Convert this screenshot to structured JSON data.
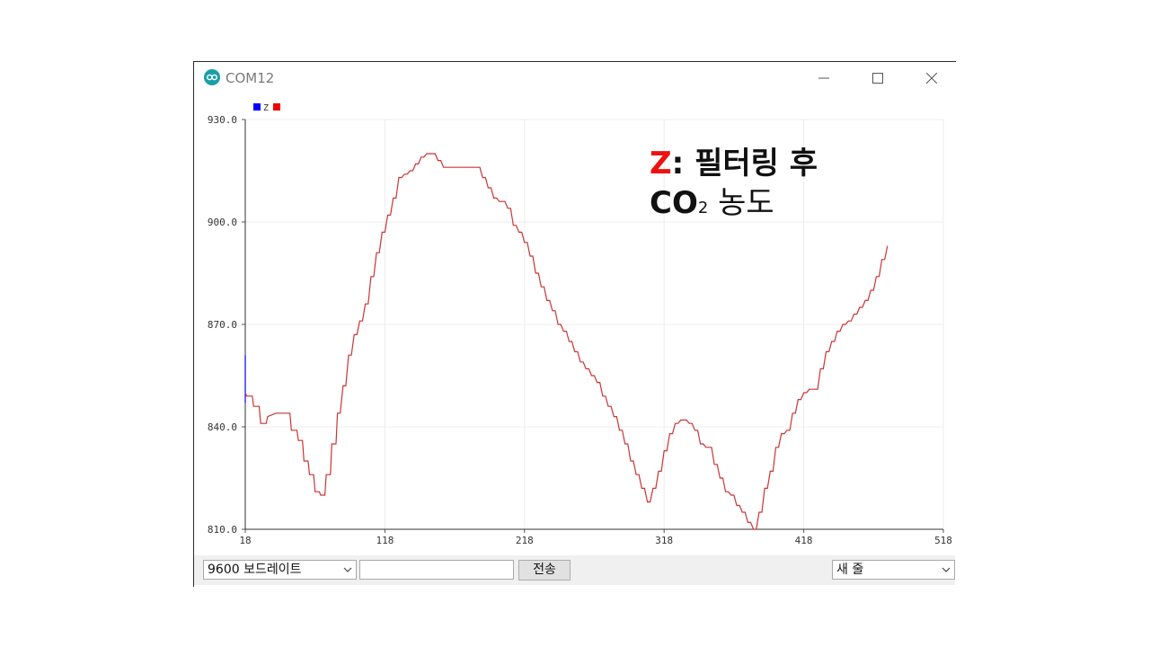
{
  "window": {
    "title": "COM12"
  },
  "controls": {
    "minimize_icon": "minimize-icon",
    "maximize_icon": "maximize-icon",
    "close_icon": "close-icon"
  },
  "chart_data": {
    "type": "line",
    "title": "",
    "xlabel": "",
    "ylabel": "",
    "legend": {
      "entries": [
        "Z"
      ],
      "placement": "top-left",
      "swatch_colors": [
        "#0000ff",
        "#ee0000"
      ]
    },
    "grid": true,
    "xlim": [
      18,
      518
    ],
    "ylim": [
      810,
      930
    ],
    "x_ticks": [
      "18",
      "118",
      "218",
      "318",
      "418",
      "518"
    ],
    "y_ticks": [
      "930.0",
      "900.0",
      "870.0",
      "840.0",
      "810.0"
    ],
    "series": [
      {
        "name": "",
        "color": "#0000ff",
        "points": [
          [
            18,
            861
          ],
          [
            18,
            847
          ]
        ]
      },
      {
        "name": "Z",
        "color": "#cc3333",
        "points": [
          [
            18,
            850
          ],
          [
            19,
            849
          ],
          [
            23,
            849
          ],
          [
            24,
            846
          ],
          [
            28,
            846
          ],
          [
            29,
            841
          ],
          [
            33,
            841
          ],
          [
            34,
            843
          ],
          [
            40,
            844
          ],
          [
            50,
            844
          ],
          [
            51,
            839
          ],
          [
            55,
            839
          ],
          [
            56,
            836
          ],
          [
            59,
            836
          ],
          [
            60,
            830
          ],
          [
            63,
            830
          ],
          [
            64,
            826
          ],
          [
            67,
            826
          ],
          [
            68,
            821
          ],
          [
            71,
            821
          ],
          [
            72,
            820
          ],
          [
            75,
            820
          ],
          [
            76,
            826
          ],
          [
            79,
            826
          ],
          [
            80,
            835
          ],
          [
            83,
            835
          ],
          [
            84,
            844
          ],
          [
            86,
            844
          ],
          [
            88,
            852
          ],
          [
            90,
            852
          ],
          [
            92,
            861
          ],
          [
            94,
            861
          ],
          [
            96,
            867
          ],
          [
            98,
            867
          ],
          [
            100,
            871
          ],
          [
            102,
            871
          ],
          [
            104,
            876
          ],
          [
            106,
            876
          ],
          [
            108,
            884
          ],
          [
            110,
            884
          ],
          [
            112,
            891
          ],
          [
            114,
            891
          ],
          [
            116,
            897
          ],
          [
            118,
            897
          ],
          [
            120,
            902
          ],
          [
            122,
            902
          ],
          [
            124,
            907
          ],
          [
            126,
            907
          ],
          [
            128,
            913
          ],
          [
            130,
            913
          ],
          [
            132,
            914
          ],
          [
            134,
            914
          ],
          [
            136,
            915
          ],
          [
            138,
            915
          ],
          [
            140,
            917
          ],
          [
            142,
            917
          ],
          [
            144,
            919
          ],
          [
            146,
            919
          ],
          [
            148,
            920
          ],
          [
            154,
            920
          ],
          [
            156,
            918
          ],
          [
            158,
            918
          ],
          [
            160,
            916
          ],
          [
            186,
            916
          ],
          [
            188,
            913
          ],
          [
            190,
            913
          ],
          [
            192,
            910
          ],
          [
            194,
            910
          ],
          [
            196,
            907
          ],
          [
            198,
            907
          ],
          [
            200,
            906
          ],
          [
            204,
            906
          ],
          [
            206,
            904
          ],
          [
            208,
            904
          ],
          [
            210,
            899
          ],
          [
            212,
            899
          ],
          [
            214,
            897
          ],
          [
            216,
            897
          ],
          [
            218,
            894
          ],
          [
            220,
            894
          ],
          [
            222,
            890
          ],
          [
            224,
            890
          ],
          [
            226,
            885
          ],
          [
            228,
            885
          ],
          [
            230,
            881
          ],
          [
            232,
            881
          ],
          [
            234,
            877
          ],
          [
            236,
            877
          ],
          [
            238,
            874
          ],
          [
            240,
            874
          ],
          [
            242,
            870
          ],
          [
            244,
            870
          ],
          [
            246,
            868
          ],
          [
            248,
            868
          ],
          [
            250,
            865
          ],
          [
            252,
            865
          ],
          [
            254,
            862
          ],
          [
            256,
            862
          ],
          [
            258,
            859
          ],
          [
            260,
            859
          ],
          [
            262,
            857
          ],
          [
            264,
            857
          ],
          [
            266,
            855
          ],
          [
            268,
            855
          ],
          [
            270,
            853
          ],
          [
            272,
            853
          ],
          [
            274,
            849
          ],
          [
            276,
            849
          ],
          [
            278,
            846
          ],
          [
            280,
            846
          ],
          [
            282,
            843
          ],
          [
            284,
            843
          ],
          [
            286,
            839
          ],
          [
            288,
            839
          ],
          [
            290,
            835
          ],
          [
            292,
            835
          ],
          [
            294,
            830
          ],
          [
            296,
            830
          ],
          [
            298,
            826
          ],
          [
            300,
            826
          ],
          [
            302,
            822
          ],
          [
            304,
            822
          ],
          [
            306,
            818
          ],
          [
            308,
            818
          ],
          [
            310,
            822
          ],
          [
            312,
            822
          ],
          [
            314,
            827
          ],
          [
            316,
            827
          ],
          [
            318,
            833
          ],
          [
            320,
            833
          ],
          [
            322,
            838
          ],
          [
            324,
            838
          ],
          [
            326,
            841
          ],
          [
            328,
            841
          ],
          [
            330,
            842
          ],
          [
            334,
            842
          ],
          [
            336,
            841
          ],
          [
            338,
            841
          ],
          [
            340,
            839
          ],
          [
            342,
            839
          ],
          [
            344,
            835
          ],
          [
            346,
            835
          ],
          [
            348,
            834
          ],
          [
            352,
            834
          ],
          [
            354,
            829
          ],
          [
            356,
            829
          ],
          [
            358,
            825
          ],
          [
            360,
            825
          ],
          [
            362,
            821
          ],
          [
            364,
            821
          ],
          [
            366,
            820
          ],
          [
            368,
            820
          ],
          [
            370,
            817
          ],
          [
            372,
            817
          ],
          [
            374,
            815
          ],
          [
            376,
            815
          ],
          [
            378,
            812
          ],
          [
            380,
            812
          ],
          [
            382,
            810
          ],
          [
            384,
            810
          ],
          [
            386,
            815
          ],
          [
            388,
            815
          ],
          [
            390,
            822
          ],
          [
            392,
            822
          ],
          [
            394,
            827
          ],
          [
            396,
            827
          ],
          [
            398,
            834
          ],
          [
            400,
            834
          ],
          [
            402,
            838
          ],
          [
            404,
            838
          ],
          [
            406,
            839
          ],
          [
            408,
            839
          ],
          [
            410,
            844
          ],
          [
            412,
            844
          ],
          [
            414,
            848
          ],
          [
            416,
            848
          ],
          [
            418,
            850
          ],
          [
            420,
            850
          ],
          [
            422,
            851
          ],
          [
            424,
            851
          ],
          [
            426,
            851
          ],
          [
            428,
            851
          ],
          [
            430,
            857
          ],
          [
            432,
            857
          ],
          [
            434,
            862
          ],
          [
            436,
            862
          ],
          [
            438,
            865
          ],
          [
            440,
            865
          ],
          [
            442,
            868
          ],
          [
            444,
            868
          ],
          [
            446,
            870
          ],
          [
            448,
            870
          ],
          [
            450,
            871
          ],
          [
            452,
            871
          ],
          [
            454,
            873
          ],
          [
            456,
            873
          ],
          [
            458,
            875
          ],
          [
            460,
            875
          ],
          [
            462,
            877
          ],
          [
            464,
            877
          ],
          [
            466,
            880
          ],
          [
            468,
            880
          ],
          [
            470,
            884
          ],
          [
            472,
            884
          ],
          [
            474,
            889
          ],
          [
            476,
            889
          ],
          [
            478,
            893
          ]
        ]
      }
    ],
    "annotation": {
      "line1_z": "Z",
      "line1_rest": ": 필터링 후",
      "line2_co": "CO",
      "line2_sub": "2",
      "line2_rest": " 농도",
      "z_color": "#ee1111"
    }
  },
  "bottombar": {
    "baud_select": "9600 보드레이트",
    "text_input_value": "",
    "send_button": "전송",
    "line_ending_select": "새 줄",
    "dropdown_icon": "chevron-down-icon"
  }
}
